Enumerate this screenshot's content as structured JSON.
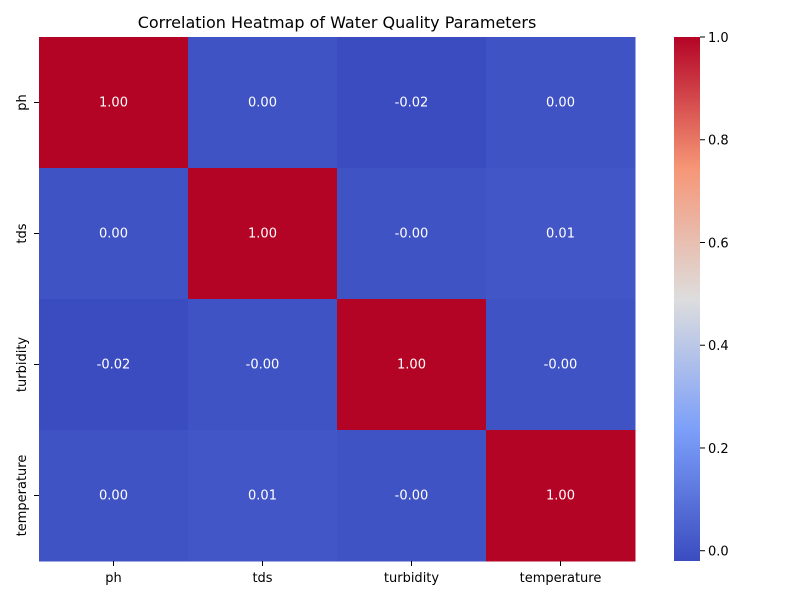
{
  "chart_data": {
    "type": "heatmap",
    "title": "Correlation Heatmap of Water Quality Parameters",
    "row_labels": [
      "ph",
      "tds",
      "turbidity",
      "temperature"
    ],
    "col_labels": [
      "ph",
      "tds",
      "turbidity",
      "temperature"
    ],
    "values": [
      [
        1.0,
        0.0,
        -0.02,
        0.0
      ],
      [
        0.0,
        1.0,
        -0.0,
        0.01
      ],
      [
        -0.02,
        -0.0,
        1.0,
        -0.0
      ],
      [
        0.0,
        0.01,
        -0.0,
        1.0
      ]
    ],
    "annotations": [
      [
        "1.00",
        "0.00",
        "-0.02",
        "0.00"
      ],
      [
        "0.00",
        "1.00",
        "-0.00",
        "0.01"
      ],
      [
        "-0.02",
        "-0.00",
        "1.00",
        "-0.00"
      ],
      [
        "0.00",
        "0.01",
        "-0.00",
        "1.00"
      ]
    ],
    "colormap": "coolwarm",
    "color_range": [
      -0.02,
      1.0
    ],
    "colorbar_ticks": [
      0.0,
      0.2,
      0.4,
      0.6,
      0.8,
      1.0
    ],
    "colorbar_tick_labels": [
      "0.0",
      "0.2",
      "0.4",
      "0.6",
      "0.8",
      "1.0"
    ],
    "grid": false
  }
}
